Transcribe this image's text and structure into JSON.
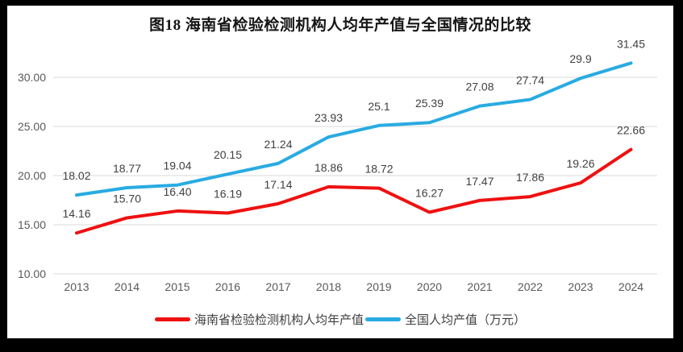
{
  "title": "图18  海南省检验检测机构人均年产值与全国情况的比较",
  "colors": {
    "hainan": "#ee1111",
    "national": "#29abe2",
    "grid": "#d9d9d9",
    "axis_text": "#595959",
    "label_text": "#404040",
    "frame": "#000000",
    "background": "#ffffff"
  },
  "chart_data": {
    "type": "line",
    "title": "图18  海南省检验检测机构人均年产值与全国情况的比较",
    "xlabel": "",
    "ylabel": "",
    "categories": [
      "2013",
      "2014",
      "2015",
      "2016",
      "2017",
      "2018",
      "2019",
      "2020",
      "2021",
      "2022",
      "2023",
      "2024"
    ],
    "series": [
      {
        "name": "海南省检验检测机构人均年产值",
        "color_key": "hainan",
        "values": [
          14.16,
          15.7,
          16.4,
          16.19,
          17.14,
          18.86,
          18.72,
          16.27,
          17.47,
          17.86,
          19.26,
          22.66
        ],
        "labels": [
          "14.16",
          "15.70",
          "16.40",
          "16.19",
          "17.14",
          "18.86",
          "18.72",
          "16.27",
          "17.47",
          "17.86",
          "19.26",
          "22.66"
        ]
      },
      {
        "name": "全国人均产值（万元）",
        "color_key": "national",
        "values": [
          18.02,
          18.77,
          19.04,
          20.15,
          21.24,
          23.93,
          25.1,
          25.39,
          27.08,
          27.74,
          29.9,
          31.45
        ],
        "labels": [
          "18.02",
          "18.77",
          "19.04",
          "20.15",
          "21.24",
          "23.93",
          "25.1",
          "25.39",
          "27.08",
          "27.74",
          "29.9",
          "31.45"
        ]
      }
    ],
    "ylim": [
      10,
      32
    ],
    "ytick_values": [
      10,
      15,
      20,
      25,
      30
    ],
    "ytick_labels": [
      "10.00",
      "15.00",
      "20.00",
      "25.00",
      "30.00"
    ],
    "grid": "horizontal-only",
    "legend_position": "bottom"
  }
}
